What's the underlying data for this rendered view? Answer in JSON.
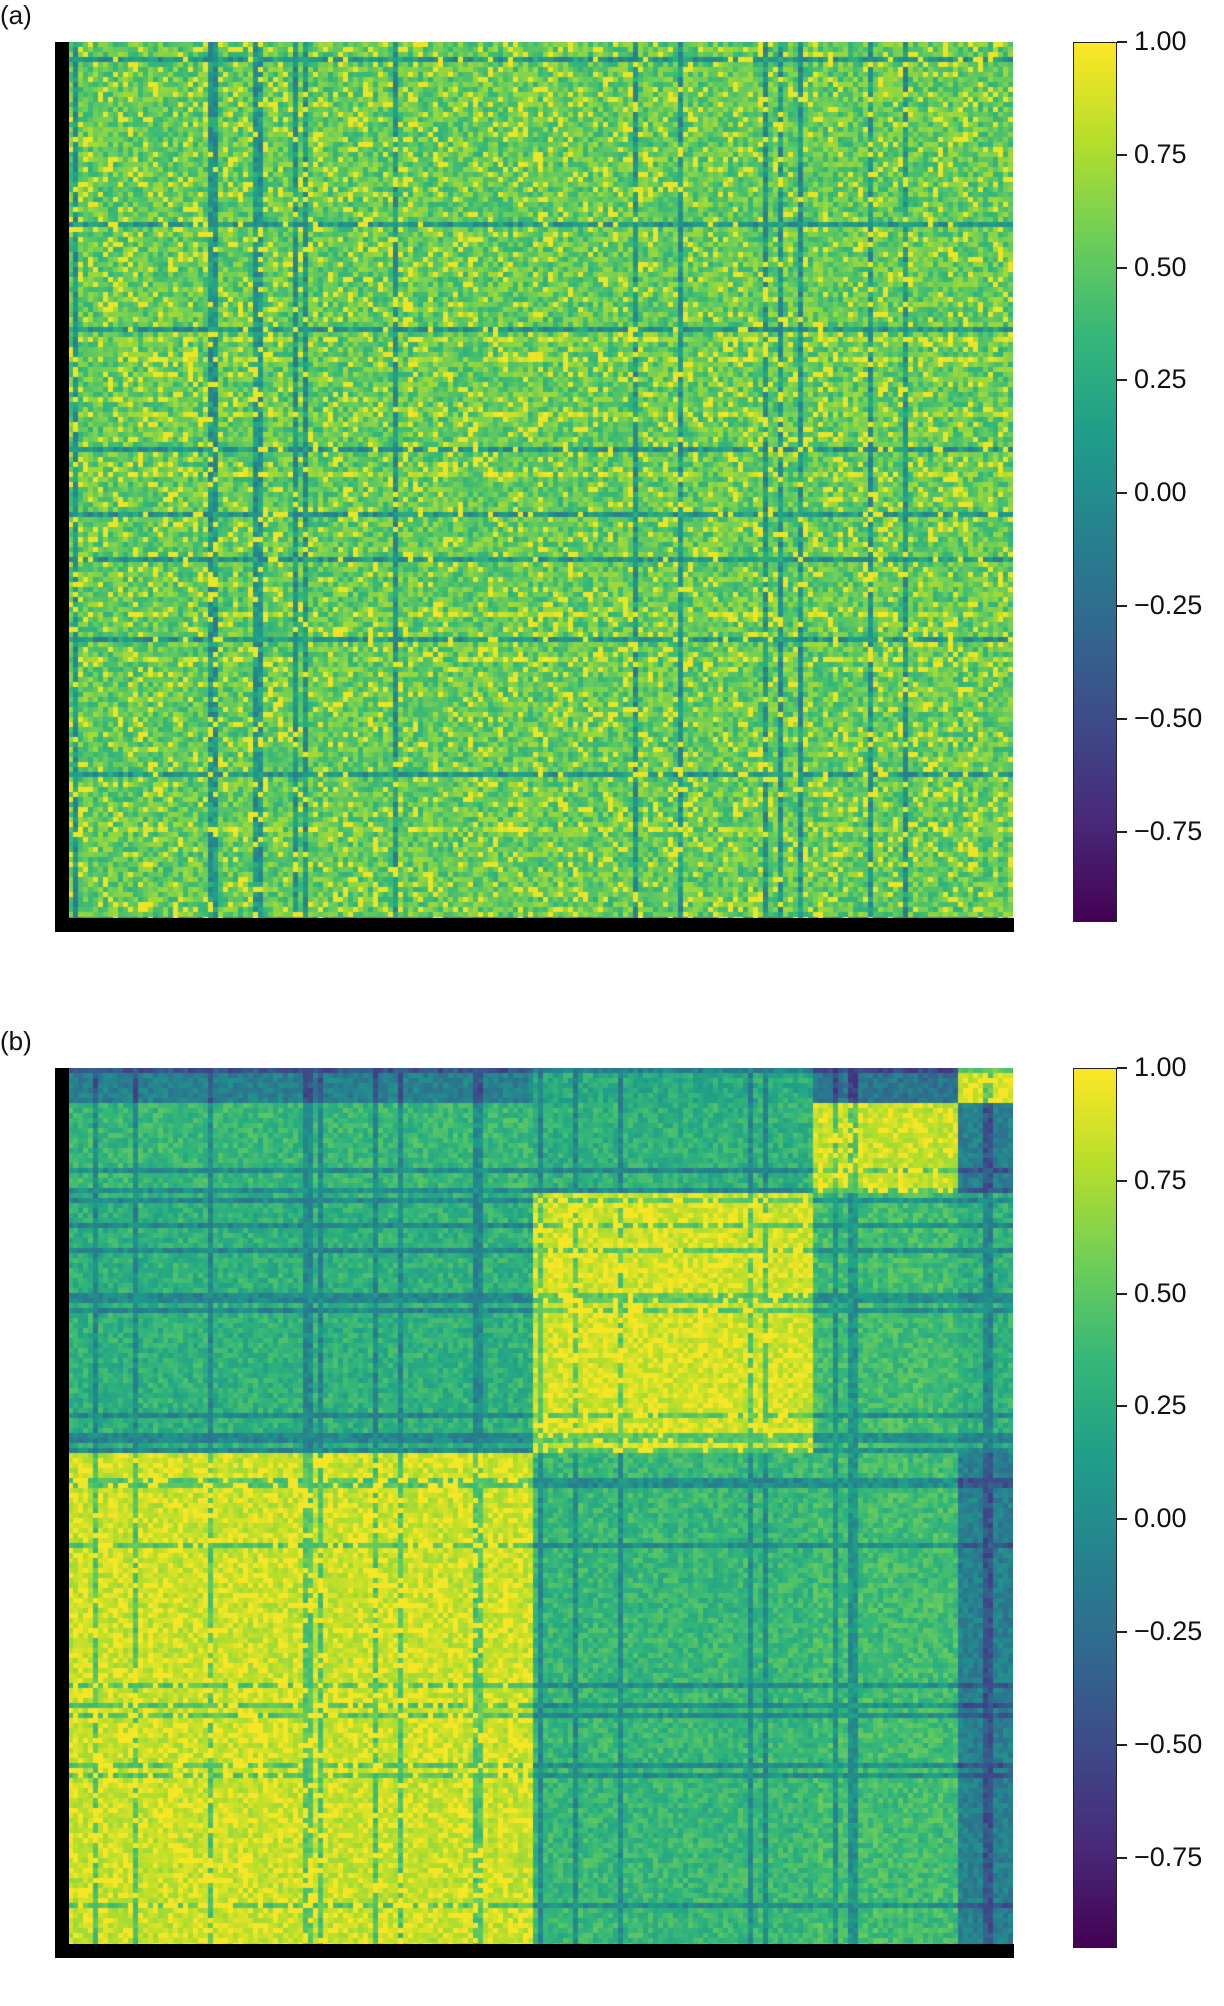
{
  "panels": [
    {
      "label": "(a)"
    },
    {
      "label": "(b)"
    }
  ],
  "colorbar": {
    "ticks": [
      "1.00",
      "0.75",
      "0.50",
      "0.25",
      "0.00",
      "−0.25",
      "−0.50",
      "−0.75"
    ],
    "tick_values": [
      1.0,
      0.75,
      0.5,
      0.25,
      0.0,
      -0.25,
      -0.5,
      -0.75
    ],
    "range": [
      -0.95,
      1.0
    ],
    "colormap": "viridis",
    "colors": [
      "#440154",
      "#482878",
      "#3e4989",
      "#31688e",
      "#26828e",
      "#1f9e89",
      "#35b779",
      "#6ece58",
      "#b5de2b",
      "#fde725"
    ]
  },
  "chart_data": [
    {
      "type": "heatmap",
      "panel": "(a)",
      "title": "",
      "xlabel": "",
      "ylabel": "",
      "value_range": [
        -0.95,
        1.0
      ],
      "structure": "unclustered correlation matrix; values mostly 0.3 to 0.8 with scattered yellow cells and thin blue stripes",
      "dominant_value": 0.55
    },
    {
      "type": "heatmap",
      "panel": "(b)",
      "title": "",
      "xlabel": "",
      "ylabel": "",
      "value_range": [
        -0.95,
        1.0
      ],
      "structure": "clustered correlation matrix with block structure",
      "blocks": [
        {
          "rows": [
            0.0,
            0.04
          ],
          "cols": [
            0.0,
            0.5
          ],
          "value": -0.1
        },
        {
          "rows": [
            0.0,
            0.04
          ],
          "cols": [
            0.5,
            0.79
          ],
          "value": 0.25
        },
        {
          "rows": [
            0.0,
            0.04
          ],
          "cols": [
            0.79,
            0.94
          ],
          "value": -0.2
        },
        {
          "rows": [
            0.0,
            0.04
          ],
          "cols": [
            0.94,
            1.0
          ],
          "value": 0.9
        },
        {
          "rows": [
            0.04,
            0.14
          ],
          "cols": [
            0.0,
            0.5
          ],
          "value": 0.35
        },
        {
          "rows": [
            0.04,
            0.14
          ],
          "cols": [
            0.5,
            0.79
          ],
          "value": 0.3
        },
        {
          "rows": [
            0.04,
            0.14
          ],
          "cols": [
            0.79,
            0.94
          ],
          "value": 0.85
        },
        {
          "rows": [
            0.04,
            0.14
          ],
          "cols": [
            0.94,
            1.0
          ],
          "value": -0.1
        },
        {
          "rows": [
            0.14,
            0.44
          ],
          "cols": [
            0.0,
            0.5
          ],
          "value": 0.3
        },
        {
          "rows": [
            0.14,
            0.44
          ],
          "cols": [
            0.5,
            0.79
          ],
          "value": 0.88
        },
        {
          "rows": [
            0.14,
            0.44
          ],
          "cols": [
            0.79,
            0.94
          ],
          "value": 0.4
        },
        {
          "rows": [
            0.14,
            0.44
          ],
          "cols": [
            0.94,
            1.0
          ],
          "value": 0.3
        },
        {
          "rows": [
            0.44,
            1.0
          ],
          "cols": [
            0.0,
            0.5
          ],
          "value": 0.85
        },
        {
          "rows": [
            0.44,
            1.0
          ],
          "cols": [
            0.5,
            0.79
          ],
          "value": 0.35
        },
        {
          "rows": [
            0.44,
            1.0
          ],
          "cols": [
            0.79,
            0.94
          ],
          "value": 0.4
        },
        {
          "rows": [
            0.44,
            1.0
          ],
          "cols": [
            0.94,
            1.0
          ],
          "value": -0.1
        }
      ]
    }
  ]
}
